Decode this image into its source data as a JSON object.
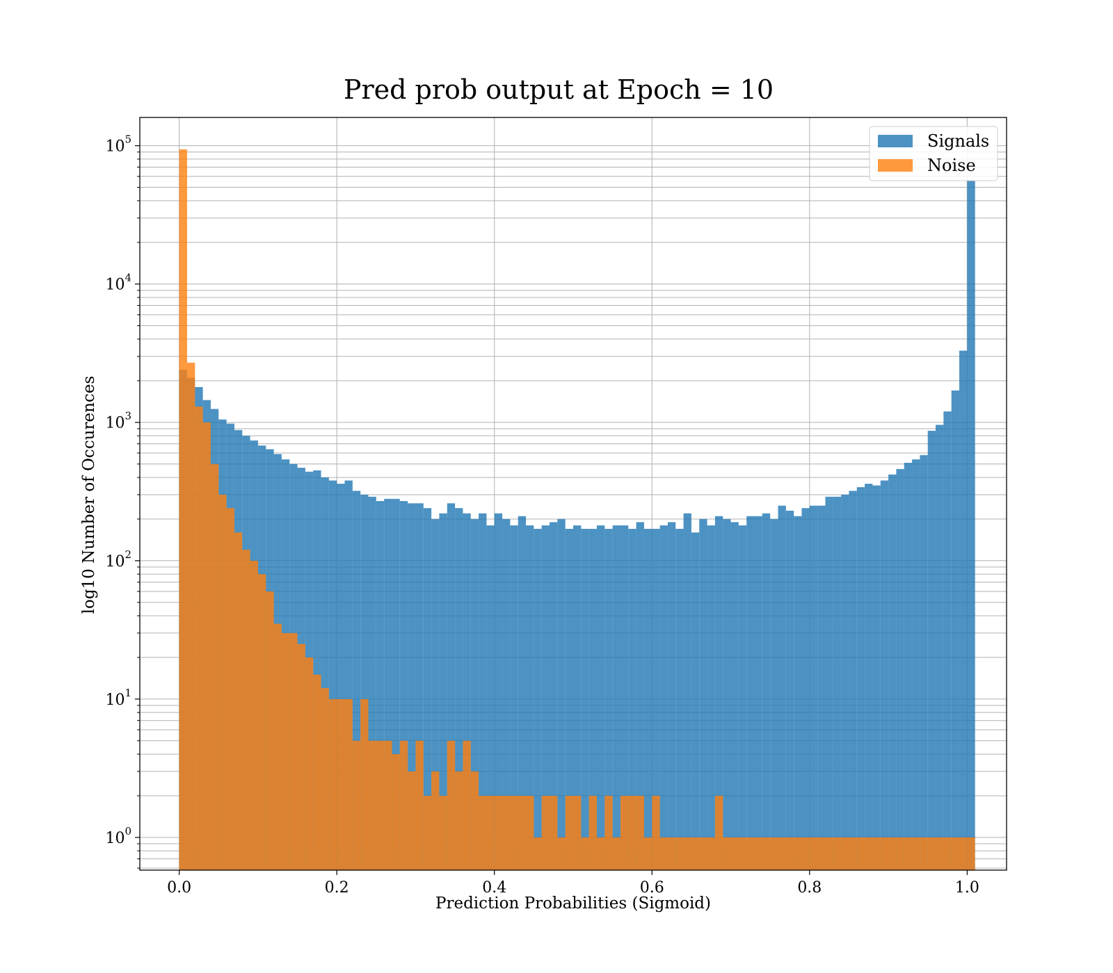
{
  "chart_data": {
    "type": "bar",
    "title": "Pred prob output at Epoch = 10",
    "xlabel": "Prediction Probabilities (Sigmoid)",
    "ylabel": "log10 Number of Occurences",
    "xlim": [
      -0.05,
      1.05
    ],
    "ylim": [
      0.58,
      160000
    ],
    "yscale": "log",
    "grid": "on (major and minor)",
    "legend_position": "top-right",
    "bin_width": 0.01,
    "x_ticks": [
      {
        "value": 0.0,
        "label": "0.0"
      },
      {
        "value": 0.2,
        "label": "0.2"
      },
      {
        "value": 0.4,
        "label": "0.4"
      },
      {
        "value": 0.6,
        "label": "0.6"
      },
      {
        "value": 0.8,
        "label": "0.8"
      },
      {
        "value": 1.0,
        "label": "1.0"
      }
    ],
    "y_ticks": [
      {
        "value": 1,
        "base": "10",
        "exp": "0"
      },
      {
        "value": 10,
        "base": "10",
        "exp": "1"
      },
      {
        "value": 100,
        "base": "10",
        "exp": "2"
      },
      {
        "value": 1000,
        "base": "10",
        "exp": "3"
      },
      {
        "value": 10000,
        "base": "10",
        "exp": "4"
      },
      {
        "value": 100000,
        "base": "10",
        "exp": "5"
      }
    ],
    "series": [
      {
        "name": "Signals",
        "color": "#1f77b4",
        "alpha": 0.8,
        "bin_start": 0.0,
        "values": [
          2400,
          2100,
          1800,
          1450,
          1250,
          1050,
          980,
          880,
          800,
          740,
          680,
          640,
          590,
          540,
          500,
          470,
          440,
          450,
          400,
          380,
          360,
          380,
          320,
          300,
          290,
          270,
          280,
          280,
          270,
          260,
          260,
          240,
          200,
          220,
          260,
          240,
          220,
          200,
          220,
          180,
          220,
          200,
          180,
          210,
          180,
          170,
          180,
          190,
          200,
          170,
          180,
          170,
          170,
          180,
          170,
          180,
          180,
          170,
          190,
          170,
          170,
          180,
          190,
          170,
          220,
          160,
          200,
          180,
          210,
          200,
          190,
          180,
          210,
          210,
          220,
          200,
          250,
          230,
          210,
          240,
          250,
          250,
          290,
          290,
          300,
          320,
          340,
          360,
          350,
          380,
          420,
          460,
          510,
          540,
          580,
          870,
          960,
          1200,
          1700,
          3300,
          56000
        ]
      },
      {
        "name": "Noise",
        "color": "#ff7f0e",
        "alpha": 0.8,
        "bin_start": 0.0,
        "values": [
          94000,
          2700,
          1300,
          1000,
          500,
          300,
          240,
          160,
          120,
          100,
          80,
          60,
          35,
          30,
          30,
          25,
          20,
          15,
          12,
          10,
          10,
          10,
          5,
          10,
          5,
          5,
          5,
          4,
          5,
          3,
          5,
          2,
          3,
          2,
          5,
          3,
          5,
          3,
          2,
          2,
          2,
          2,
          2,
          2,
          2,
          1,
          2,
          2,
          1,
          2,
          2,
          1,
          2,
          1,
          2,
          1,
          2,
          2,
          2,
          1,
          2,
          1,
          1,
          1,
          1,
          1,
          1,
          1,
          2,
          1,
          1,
          1,
          1,
          1,
          1,
          1,
          1,
          1,
          1,
          1,
          1,
          1,
          1,
          1,
          1,
          1,
          1,
          1,
          1,
          1,
          1,
          1,
          1,
          1,
          1,
          1,
          1,
          1,
          1,
          1,
          1
        ]
      }
    ]
  }
}
